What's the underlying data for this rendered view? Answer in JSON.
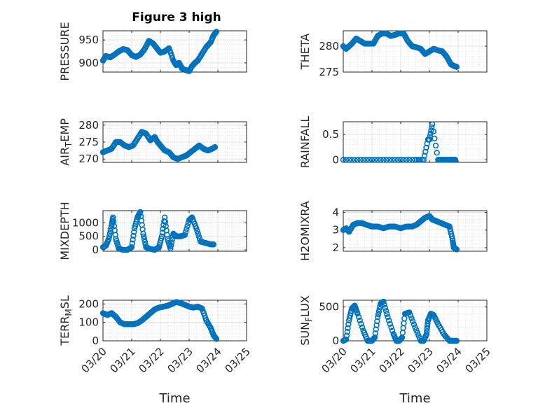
{
  "figure_title": "Figure 3 high",
  "marker_color": "#0072BD",
  "grid": "on",
  "chart_data": [
    {
      "type": "scatter",
      "ylabel": "PRESSURE",
      "xlabel": "",
      "xlim": [
        "03/20",
        "03/25"
      ],
      "ylim": [
        880,
        970
      ],
      "yticks": [
        900,
        950
      ],
      "series": [
        {
          "x_days": [
            0.0,
            0.1,
            0.25,
            0.4,
            0.55,
            0.7,
            0.85,
            1.0,
            1.15,
            1.3,
            1.45,
            1.6,
            1.75,
            1.9,
            2.0,
            2.15,
            2.3,
            2.45,
            2.55,
            2.65,
            2.75,
            2.85,
            3.0,
            3.1,
            3.2,
            3.3,
            3.45,
            3.6,
            3.75,
            3.85,
            3.95
          ],
          "y": [
            905,
            915,
            912,
            918,
            925,
            930,
            928,
            917,
            913,
            918,
            930,
            948,
            942,
            930,
            922,
            925,
            932,
            905,
            895,
            900,
            888,
            885,
            882,
            893,
            900,
            905,
            920,
            935,
            945,
            960,
            968
          ]
        }
      ]
    },
    {
      "type": "scatter",
      "ylabel": "THETA",
      "xlabel": "",
      "xlim": [
        "03/20",
        "03/25"
      ],
      "ylim": [
        275,
        283
      ],
      "yticks": [
        275,
        280
      ],
      "series": [
        {
          "x_days": [
            0.0,
            0.1,
            0.2,
            0.3,
            0.45,
            0.6,
            0.75,
            0.9,
            1.05,
            1.2,
            1.35,
            1.5,
            1.65,
            1.8,
            1.95,
            2.1,
            2.25,
            2.4,
            2.55,
            2.7,
            2.85,
            3.0,
            3.15,
            3.3,
            3.45,
            3.6,
            3.75,
            3.85,
            3.95
          ],
          "y": [
            280,
            279.5,
            280,
            280.5,
            281.5,
            281,
            280.5,
            280.5,
            280.5,
            282,
            282.5,
            282.5,
            282,
            282.2,
            282.5,
            282.5,
            281,
            280,
            279.8,
            279.5,
            278.5,
            279,
            279.5,
            279.2,
            279,
            278,
            276.5,
            276.2,
            276
          ]
        }
      ]
    },
    {
      "type": "scatter",
      "ylabel": "AIR_TEMP",
      "xlabel": "",
      "xlim": [
        "03/20",
        "03/25"
      ],
      "ylim": [
        269,
        281
      ],
      "yticks": [
        270,
        275,
        280
      ],
      "series": [
        {
          "x_days": [
            0.0,
            0.15,
            0.3,
            0.45,
            0.6,
            0.75,
            0.9,
            1.05,
            1.2,
            1.35,
            1.5,
            1.65,
            1.8,
            1.9,
            2.0,
            2.15,
            2.3,
            2.45,
            2.6,
            2.75,
            2.9,
            3.05,
            3.2,
            3.35,
            3.5,
            3.65,
            3.8,
            3.9
          ],
          "y": [
            272,
            272.5,
            273,
            275,
            275,
            274,
            273.5,
            274,
            276,
            278,
            277.5,
            275.5,
            276.5,
            275,
            274,
            272.5,
            272,
            270.5,
            270,
            270.5,
            271,
            272,
            273,
            274,
            273,
            272.5,
            273,
            273.5
          ]
        }
      ]
    },
    {
      "type": "scatter",
      "ylabel": "RAINFALL",
      "xlabel": "",
      "xlim": [
        "03/20",
        "03/25"
      ],
      "ylim": [
        -0.05,
        0.75
      ],
      "yticks": [
        0,
        0.5
      ],
      "series": [
        {
          "x_days": [
            0.0,
            0.5,
            1.0,
            1.5,
            2.0,
            2.5,
            2.8,
            2.95,
            3.0,
            3.1,
            3.3,
            3.5,
            3.7,
            3.8,
            3.9
          ],
          "y": [
            0,
            0,
            0,
            0,
            0,
            0,
            0,
            0.4,
            0.4,
            0.7,
            0,
            0,
            0,
            0,
            0
          ]
        }
      ]
    },
    {
      "type": "scatter",
      "ylabel": "MIXDEPTH",
      "xlabel": "",
      "xlim": [
        "03/20",
        "03/25"
      ],
      "ylim": [
        -50,
        1450
      ],
      "yticks": [
        0,
        500,
        1000
      ],
      "series": [
        {
          "x_days": [
            0.0,
            0.1,
            0.2,
            0.3,
            0.35,
            0.45,
            0.55,
            0.7,
            0.85,
            1.0,
            1.1,
            1.2,
            1.3,
            1.4,
            1.5,
            1.6,
            1.8,
            1.95,
            2.05,
            2.15,
            2.25,
            2.35,
            2.45,
            2.55,
            2.7,
            2.85,
            3.0,
            3.1,
            3.25,
            3.4,
            3.6,
            3.75,
            3.85
          ],
          "y": [
            100,
            150,
            400,
            900,
            1200,
            400,
            50,
            0,
            0,
            100,
            800,
            1200,
            1400,
            600,
            100,
            50,
            0,
            100,
            500,
            1200,
            400,
            50,
            600,
            500,
            500,
            550,
            1100,
            1200,
            800,
            300,
            250,
            200,
            200
          ]
        }
      ]
    },
    {
      "type": "scatter",
      "ylabel": "H2OMIXRA",
      "xlabel": "",
      "xlim": [
        "03/20",
        "03/25"
      ],
      "ylim": [
        1.8,
        4.1
      ],
      "yticks": [
        2,
        3,
        4
      ],
      "series": [
        {
          "x_days": [
            0.0,
            0.1,
            0.2,
            0.35,
            0.5,
            0.65,
            0.8,
            1.0,
            1.2,
            1.4,
            1.6,
            1.8,
            2.0,
            2.2,
            2.4,
            2.55,
            2.7,
            2.85,
            3.0,
            3.1,
            3.25,
            3.4,
            3.55,
            3.7,
            3.8,
            3.85,
            3.95
          ],
          "y": [
            3.0,
            3.1,
            2.9,
            3.3,
            3.4,
            3.4,
            3.3,
            3.2,
            3.2,
            3.1,
            3.2,
            3.2,
            3.1,
            3.2,
            3.2,
            3.3,
            3.5,
            3.7,
            3.8,
            3.6,
            3.5,
            3.4,
            3.3,
            3.2,
            2.5,
            2.0,
            1.9
          ]
        }
      ]
    },
    {
      "type": "scatter",
      "ylabel": "TERR_MSL",
      "xlabel": "Time",
      "xlim": [
        "03/20",
        "03/25"
      ],
      "ylim": [
        0,
        220
      ],
      "yticks": [
        0,
        100,
        200
      ],
      "series": [
        {
          "x_days": [
            0.0,
            0.15,
            0.3,
            0.45,
            0.6,
            0.75,
            0.9,
            1.05,
            1.2,
            1.35,
            1.5,
            1.65,
            1.8,
            1.95,
            2.1,
            2.25,
            2.4,
            2.55,
            2.7,
            2.85,
            3.0,
            3.15,
            3.3,
            3.45,
            3.6,
            3.75,
            3.85,
            3.95
          ],
          "y": [
            150,
            140,
            150,
            130,
            100,
            90,
            90,
            90,
            95,
            110,
            130,
            150,
            170,
            180,
            185,
            190,
            200,
            210,
            205,
            195,
            185,
            180,
            185,
            175,
            110,
            70,
            30,
            10
          ]
        }
      ]
    },
    {
      "type": "scatter",
      "ylabel": "SUN_FLUX",
      "xlabel": "Time",
      "xlim": [
        "03/20",
        "03/25"
      ],
      "ylim": [
        0,
        600
      ],
      "yticks": [
        0,
        500
      ],
      "series": [
        {
          "x_days": [
            0.0,
            0.1,
            0.2,
            0.3,
            0.4,
            0.5,
            0.7,
            0.85,
            1.0,
            1.1,
            1.2,
            1.3,
            1.4,
            1.55,
            1.75,
            1.85,
            1.95,
            2.05,
            2.15,
            2.3,
            2.5,
            2.7,
            2.8,
            2.9,
            2.95,
            3.05,
            3.15,
            3.3,
            3.5,
            3.7,
            3.85,
            3.95
          ],
          "y": [
            0,
            20,
            300,
            480,
            520,
            400,
            150,
            0,
            0,
            50,
            350,
            550,
            580,
            350,
            100,
            0,
            0,
            50,
            400,
            420,
            200,
            0,
            0,
            100,
            300,
            400,
            380,
            250,
            100,
            0,
            0,
            0
          ]
        }
      ]
    }
  ]
}
